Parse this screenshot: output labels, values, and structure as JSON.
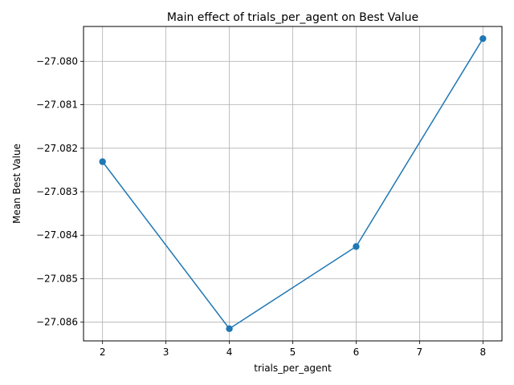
{
  "chart_data": {
    "type": "line",
    "title": "Main effect of trials_per_agent on Best Value",
    "xlabel": "trials_per_agent",
    "ylabel": "Mean Best Value",
    "x": [
      2,
      4,
      6,
      8
    ],
    "series": [
      {
        "values": [
          -27.08231,
          -27.08615,
          -27.08426,
          -27.07948
        ]
      }
    ],
    "xlim": [
      1.7,
      8.3
    ],
    "ylim": [
      -27.08643,
      -27.0792
    ],
    "xticks": [
      2,
      3,
      4,
      5,
      6,
      7,
      8
    ],
    "xtick_labels": [
      "2",
      "3",
      "4",
      "5",
      "6",
      "7",
      "8"
    ],
    "yticks": [
      -27.086,
      -27.085,
      -27.084,
      -27.083,
      -27.082,
      -27.081,
      -27.08
    ],
    "ytick_labels": [
      "−27.086",
      "−27.085",
      "−27.084",
      "−27.083",
      "−27.082",
      "−27.081",
      "−27.080"
    ],
    "grid": true,
    "marker": "circle",
    "line_color": "#1f77b4"
  }
}
